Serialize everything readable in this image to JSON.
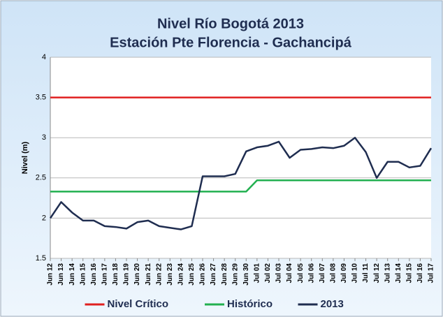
{
  "chart_data": {
    "type": "line",
    "title": "Nivel Río Bogotá 2013",
    "subtitle": "Estación Pte Florencia - Gachancipá",
    "y_label": "Nivel (m)",
    "categories": [
      "Jun 12",
      "Jun 13",
      "Jun 14",
      "Jun 15",
      "Jun 16",
      "Jun 17",
      "Jun 18",
      "Jun 19",
      "Jun 20",
      "Jun 21",
      "Jun 22",
      "Jun 23",
      "Jun 24",
      "Jun 25",
      "Jun 26",
      "Jun 27",
      "Jun 28",
      "Jun 29",
      "Jun 30",
      "Jul 01",
      "Jul 02",
      "Jul 03",
      "Jul 04",
      "Jul 05",
      "Jul 06",
      "Jul 07",
      "Jul 08",
      "Jul 09",
      "Jul 10",
      "Jul 11",
      "Jul 12",
      "Jul 13",
      "Jul 14",
      "Jul 15",
      "Jul 16",
      "Jul 17"
    ],
    "series": [
      {
        "name": "Nivel Crítico",
        "color": "#e02020",
        "values": [
          3.5,
          3.5,
          3.5,
          3.5,
          3.5,
          3.5,
          3.5,
          3.5,
          3.5,
          3.5,
          3.5,
          3.5,
          3.5,
          3.5,
          3.5,
          3.5,
          3.5,
          3.5,
          3.5,
          3.5,
          3.5,
          3.5,
          3.5,
          3.5,
          3.5,
          3.5,
          3.5,
          3.5,
          3.5,
          3.5,
          3.5,
          3.5,
          3.5,
          3.5,
          3.5,
          3.5
        ]
      },
      {
        "name": "Histórico",
        "color": "#22b050",
        "values": [
          2.33,
          2.33,
          2.33,
          2.33,
          2.33,
          2.33,
          2.33,
          2.33,
          2.33,
          2.33,
          2.33,
          2.33,
          2.33,
          2.33,
          2.33,
          2.33,
          2.33,
          2.33,
          2.33,
          2.47,
          2.47,
          2.47,
          2.47,
          2.47,
          2.47,
          2.47,
          2.47,
          2.47,
          2.47,
          2.47,
          2.47,
          2.47,
          2.47,
          2.47,
          2.47,
          2.47
        ]
      },
      {
        "name": "2013",
        "color": "#1f2d50",
        "values": [
          2.0,
          2.2,
          2.07,
          1.97,
          1.97,
          1.9,
          1.89,
          1.87,
          1.95,
          1.97,
          1.9,
          1.88,
          1.86,
          1.9,
          2.52,
          2.52,
          2.52,
          2.55,
          2.83,
          2.88,
          2.9,
          2.95,
          2.75,
          2.85,
          2.86,
          2.88,
          2.87,
          2.9,
          3.0,
          2.82,
          2.5,
          2.7,
          2.7,
          2.63,
          2.65,
          2.87
        ]
      }
    ],
    "ylim": [
      1.5,
      4
    ],
    "yticks": [
      1.5,
      2,
      2.5,
      3,
      3.5,
      4
    ],
    "grid": true,
    "legend": "bottom"
  }
}
